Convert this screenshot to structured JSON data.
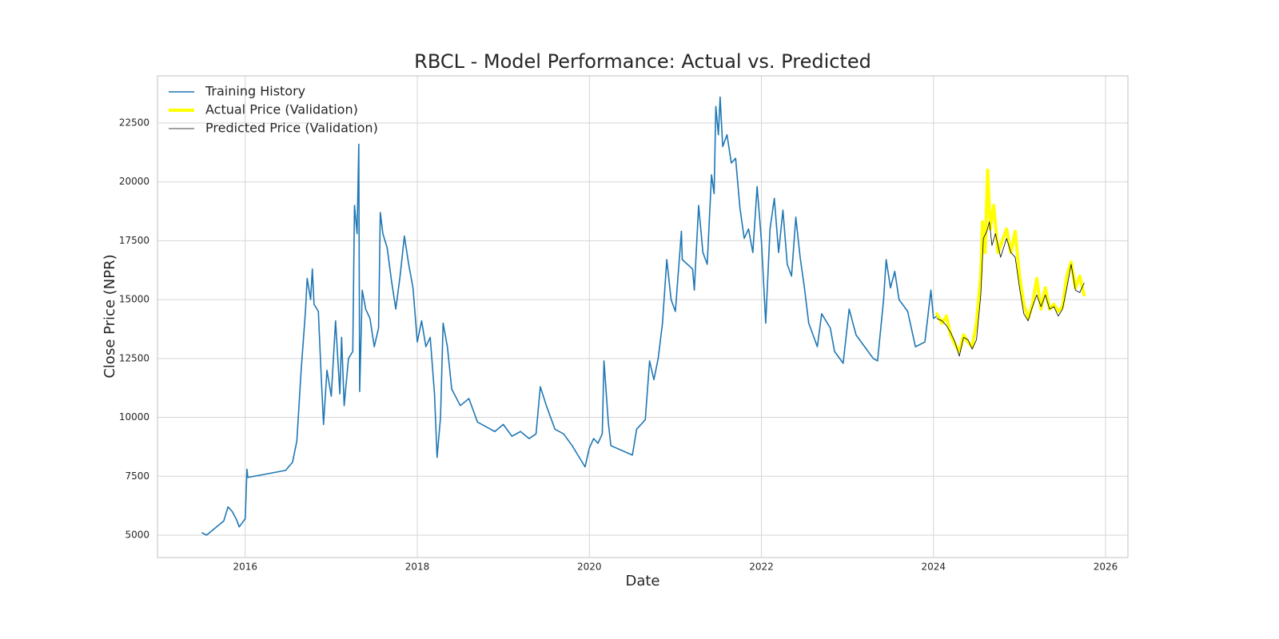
{
  "chart_data": {
    "type": "line",
    "title": "RBCL - Model Performance: Actual vs. Predicted",
    "xlabel": "Date",
    "ylabel": "Close Price (NPR)",
    "xlim": [
      2014.98,
      2026.26
    ],
    "ylim": [
      4050,
      24500
    ],
    "xticks": [
      2016,
      2018,
      2020,
      2022,
      2024,
      2026
    ],
    "yticks": [
      5000,
      7500,
      10000,
      12500,
      15000,
      17500,
      20000,
      22500
    ],
    "grid": true,
    "legend": "upper left",
    "series": [
      {
        "name": "Training History",
        "color": "#1f77b4",
        "linewidth": 1.6,
        "x": [
          2015.5,
          2015.55,
          2015.65,
          2015.75,
          2015.8,
          2015.85,
          2015.9,
          2015.93,
          2016.0,
          2016.02,
          2016.03,
          2016.47,
          2016.55,
          2016.6,
          2016.65,
          2016.7,
          2016.72,
          2016.76,
          2016.78,
          2016.8,
          2016.85,
          2016.88,
          2016.91,
          2016.95,
          2017.0,
          2017.05,
          2017.1,
          2017.12,
          2017.15,
          2017.2,
          2017.25,
          2017.27,
          2017.3,
          2017.32,
          2017.33,
          2017.36,
          2017.4,
          2017.45,
          2017.5,
          2017.55,
          2017.57,
          2017.6,
          2017.65,
          2017.7,
          2017.75,
          2017.8,
          2017.85,
          2017.9,
          2017.95,
          2018.0,
          2018.05,
          2018.1,
          2018.15,
          2018.2,
          2018.23,
          2018.27,
          2018.3,
          2018.35,
          2018.4,
          2018.5,
          2018.6,
          2018.7,
          2018.8,
          2018.9,
          2019.0,
          2019.1,
          2019.2,
          2019.3,
          2019.38,
          2019.43,
          2019.5,
          2019.6,
          2019.7,
          2019.8,
          2019.9,
          2019.95,
          2020.0,
          2020.05,
          2020.1,
          2020.15,
          2020.17,
          2020.22,
          2020.25,
          2020.5,
          2020.55,
          2020.6,
          2020.65,
          2020.7,
          2020.75,
          2020.8,
          2020.85,
          2020.9,
          2020.95,
          2021.0,
          2021.07,
          2021.08,
          2021.2,
          2021.22,
          2021.27,
          2021.32,
          2021.37,
          2021.42,
          2021.45,
          2021.47,
          2021.5,
          2021.52,
          2021.55,
          2021.6,
          2021.65,
          2021.7,
          2021.75,
          2021.8,
          2021.85,
          2021.9,
          2021.95,
          2022.0,
          2022.05,
          2022.1,
          2022.15,
          2022.2,
          2022.25,
          2022.3,
          2022.35,
          2022.4,
          2022.45,
          2022.5,
          2022.55,
          2022.65,
          2022.7,
          2022.8,
          2022.85,
          2022.95,
          2023.02,
          2023.1,
          2023.2,
          2023.3,
          2023.35,
          2023.42,
          2023.45,
          2023.5,
          2023.55,
          2023.6,
          2023.7,
          2023.79,
          2023.9,
          2023.97,
          2024.0,
          2024.04
        ],
        "values": [
          5100,
          5000,
          5300,
          5600,
          6200,
          6000,
          5650,
          5350,
          5700,
          7800,
          7450,
          7750,
          8100,
          9000,
          12000,
          14500,
          15900,
          15000,
          16300,
          14800,
          14500,
          12000,
          9700,
          12000,
          10900,
          14100,
          11000,
          13400,
          10500,
          12500,
          12800,
          19000,
          17800,
          21600,
          11100,
          15400,
          14600,
          14200,
          13000,
          13800,
          18700,
          17800,
          17200,
          15800,
          14600,
          16000,
          17700,
          16500,
          15500,
          13200,
          14100,
          13000,
          13400,
          11000,
          8300,
          10000,
          14000,
          13000,
          11200,
          10500,
          10800,
          9800,
          9600,
          9400,
          9700,
          9200,
          9400,
          9100,
          9300,
          11300,
          10500,
          9500,
          9300,
          8800,
          8200,
          7900,
          8700,
          9100,
          8900,
          9300,
          12400,
          9800,
          8800,
          8400,
          9500,
          9700,
          9900,
          12400,
          11600,
          12500,
          14000,
          16700,
          15000,
          14500,
          17900,
          16700,
          16300,
          15400,
          19000,
          17000,
          16500,
          20300,
          19500,
          23200,
          22000,
          23600,
          21500,
          22000,
          20800,
          21000,
          18900,
          17600,
          18000,
          17000,
          19800,
          17500,
          14000,
          18000,
          19300,
          17000,
          18800,
          16500,
          16000,
          18500,
          16800,
          15500,
          14000,
          13000,
          14400,
          13800,
          12800,
          12300,
          14600,
          13500,
          13000,
          12500,
          12400,
          15000,
          16700,
          15500,
          16200,
          15000,
          14500,
          13000,
          13200,
          15400,
          14200,
          14300
        ]
      },
      {
        "name": "Actual Price (Validation)",
        "color": "#ffff00",
        "linewidth": 4,
        "x": [
          2024.04,
          2024.1,
          2024.15,
          2024.2,
          2024.25,
          2024.3,
          2024.35,
          2024.4,
          2024.45,
          2024.5,
          2024.55,
          2024.57,
          2024.6,
          2024.63,
          2024.66,
          2024.7,
          2024.75,
          2024.8,
          2024.85,
          2024.9,
          2024.95,
          2025.0,
          2025.05,
          2025.1,
          2025.15,
          2025.2,
          2025.25,
          2025.3,
          2025.35,
          2025.4,
          2025.45,
          2025.5,
          2025.55,
          2025.6,
          2025.65,
          2025.7,
          2025.75
        ],
        "values": [
          14400,
          14000,
          14300,
          13500,
          13100,
          12800,
          13500,
          13200,
          13000,
          14000,
          16000,
          18300,
          17000,
          20500,
          18000,
          19000,
          17000,
          17500,
          18000,
          17000,
          17900,
          16000,
          14800,
          14200,
          14800,
          15900,
          14600,
          15500,
          14600,
          14800,
          14500,
          14700,
          16000,
          16600,
          15500,
          16000,
          15200
        ]
      },
      {
        "name": "Predicted Price (Validation)",
        "color": "#000000",
        "linewidth": 0.8,
        "x": [
          2024.04,
          2024.1,
          2024.15,
          2024.2,
          2024.25,
          2024.3,
          2024.35,
          2024.4,
          2024.45,
          2024.5,
          2024.55,
          2024.58,
          2024.62,
          2024.65,
          2024.68,
          2024.72,
          2024.78,
          2024.85,
          2024.9,
          2024.95,
          2025.0,
          2025.05,
          2025.1,
          2025.15,
          2025.2,
          2025.25,
          2025.3,
          2025.35,
          2025.4,
          2025.45,
          2025.5,
          2025.55,
          2025.6,
          2025.65,
          2025.7,
          2025.75
        ],
        "values": [
          14200,
          14100,
          13900,
          13600,
          13200,
          12600,
          13400,
          13300,
          12900,
          13300,
          15200,
          17600,
          17900,
          18300,
          17300,
          17800,
          16800,
          17600,
          17000,
          16800,
          15500,
          14400,
          14100,
          14700,
          15200,
          14700,
          15200,
          14600,
          14700,
          14300,
          14600,
          15500,
          16500,
          15400,
          15300,
          15700
        ]
      }
    ]
  }
}
